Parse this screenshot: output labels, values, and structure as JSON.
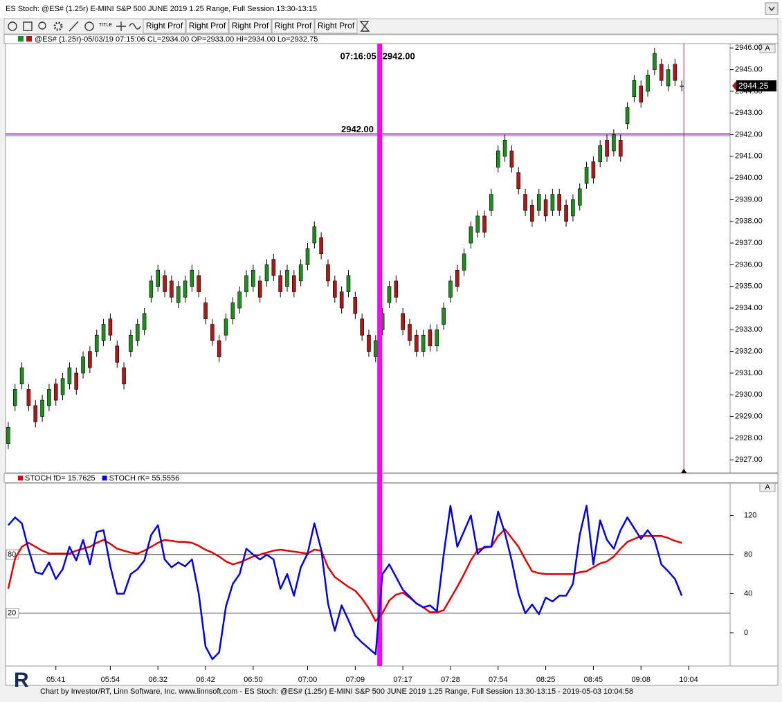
{
  "window": {
    "title": "ES Stoch: @ES# (1.25r) E-MINI S&P 500 JUNE 2019 1.25 Range, Full Session 13:30-13:15"
  },
  "toolbar": {
    "title_icon": "TITLE",
    "buttons": [
      "Right Prof",
      "Right Prof",
      "Right Prof",
      "Right Prof",
      "Right Prof"
    ]
  },
  "panel_buttons": [
    "A",
    "A"
  ],
  "footer": "Chart by Investor/RT, Linn Software, Inc. www.linnsoft.com - ES Stoch: @ES# (1.25r) E-MINI S&P 500 JUNE 2019 1.25 Range, Full Session 13:30-13:15 - 2019-05-03 10:04:58",
  "logo": "R",
  "chart_data": [
    {
      "type": "candlestick",
      "info": "@ES# (1.25r)-05/03/19 07:15:06 CL=2934.00 OP=2933.00 Hi=2934.00 Lo=2932.75",
      "up_color": "#1e8c1e",
      "down_color": "#b01818",
      "xlim": [
        -0.4,
        106.1
      ],
      "ylim": [
        2926.4,
        2946.2
      ],
      "yticks": [
        {
          "value": 2927,
          "label": "2927.00"
        },
        {
          "value": 2928,
          "label": "2928.00"
        },
        {
          "value": 2929,
          "label": "2929.00"
        },
        {
          "value": 2930,
          "label": "2930.00"
        },
        {
          "value": 2931,
          "label": "2931.00"
        },
        {
          "value": 2932,
          "label": "2932.00"
        },
        {
          "value": 2933,
          "label": "2933.00"
        },
        {
          "value": 2934,
          "label": "2934.00"
        },
        {
          "value": 2935,
          "label": "2935.00"
        },
        {
          "value": 2936,
          "label": "2936.00"
        },
        {
          "value": 2937,
          "label": "2937.00"
        },
        {
          "value": 2938,
          "label": "2938.00"
        },
        {
          "value": 2939,
          "label": "2939.00"
        },
        {
          "value": 2940,
          "label": "2940.00"
        },
        {
          "value": 2941,
          "label": "2941.00"
        },
        {
          "value": 2942,
          "label": "2942.00"
        },
        {
          "value": 2943,
          "label": "2943.00"
        },
        {
          "value": 2944,
          "label": "2944.00"
        },
        {
          "value": 2945,
          "label": "2945.00"
        },
        {
          "value": 2946,
          "label": "2946.00"
        }
      ],
      "hline": {
        "value": 2942,
        "label": "2942.00",
        "color": "#b040c0"
      },
      "cursor": {
        "x": 54.6,
        "time_label": "07:16:05",
        "price_label": "2942.00",
        "color": "#ff00ff"
      },
      "last_price": {
        "value": 2944.25,
        "label": "2944.25"
      },
      "ohlc": [
        [
          2927.75,
          2928.75,
          2927.5,
          2928.5
        ],
        [
          2929.5,
          2930.5,
          2929.25,
          2930.25
        ],
        [
          2930.5,
          2931.5,
          2930.25,
          2931.25
        ],
        [
          2930.25,
          2930.5,
          2929.25,
          2929.5
        ],
        [
          2929.5,
          2929.75,
          2928.5,
          2928.75
        ],
        [
          2929,
          2930,
          2928.75,
          2929.75
        ],
        [
          2929.5,
          2930.5,
          2929.25,
          2930.25
        ],
        [
          2930.5,
          2930.75,
          2929.5,
          2929.75
        ],
        [
          2930,
          2931,
          2929.75,
          2930.75
        ],
        [
          2930.5,
          2931.5,
          2930.25,
          2931.25
        ],
        [
          2931,
          2931.25,
          2930,
          2930.25
        ],
        [
          2931,
          2932,
          2930.75,
          2931.75
        ],
        [
          2932,
          2932.25,
          2931,
          2931.25
        ],
        [
          2932,
          2933,
          2931.75,
          2932.75
        ],
        [
          2932.5,
          2933.5,
          2932.25,
          2933.25
        ],
        [
          2933.5,
          2933.75,
          2932.5,
          2932.75
        ],
        [
          2932.25,
          2932.5,
          2931.25,
          2931.5
        ],
        [
          2931.25,
          2931.5,
          2930.25,
          2930.5
        ],
        [
          2932,
          2933,
          2931.75,
          2932.75
        ],
        [
          2932.5,
          2933.5,
          2932.25,
          2933.25
        ],
        [
          2933,
          2934,
          2932.75,
          2933.75
        ],
        [
          2934.5,
          2935.5,
          2934.25,
          2935.25
        ],
        [
          2935,
          2936,
          2934.75,
          2935.75
        ],
        [
          2935.5,
          2935.75,
          2934.5,
          2934.75
        ],
        [
          2935.25,
          2935.5,
          2934.25,
          2934.5
        ],
        [
          2934.25,
          2935.25,
          2934,
          2935
        ],
        [
          2934.5,
          2935.5,
          2934.25,
          2935.25
        ],
        [
          2935,
          2936,
          2934.75,
          2935.75
        ],
        [
          2935.5,
          2935.75,
          2934.5,
          2934.75
        ],
        [
          2934.25,
          2934.5,
          2933.25,
          2933.5
        ],
        [
          2933.25,
          2933.5,
          2932.25,
          2932.5
        ],
        [
          2932.5,
          2932.75,
          2931.5,
          2931.75
        ],
        [
          2932.75,
          2933.75,
          2932.5,
          2933.5
        ],
        [
          2933.5,
          2934.5,
          2933.25,
          2934.25
        ],
        [
          2934,
          2935,
          2933.75,
          2934.75
        ],
        [
          2934.75,
          2935.75,
          2934.5,
          2935.5
        ],
        [
          2935,
          2936,
          2934.75,
          2935.75
        ],
        [
          2935.25,
          2935.5,
          2934.25,
          2934.5
        ],
        [
          2935.25,
          2936.25,
          2935,
          2936
        ],
        [
          2936.25,
          2936.5,
          2935.25,
          2935.5
        ],
        [
          2935.5,
          2935.75,
          2934.5,
          2934.75
        ],
        [
          2935,
          2936,
          2934.75,
          2935.75
        ],
        [
          2935.5,
          2935.75,
          2934.5,
          2934.75
        ],
        [
          2935.25,
          2936.25,
          2935,
          2936
        ],
        [
          2936,
          2937,
          2935.75,
          2936.75
        ],
        [
          2937,
          2938,
          2936.75,
          2937.75
        ],
        [
          2937.25,
          2937.5,
          2936.25,
          2936.5
        ],
        [
          2936,
          2936.25,
          2935,
          2935.25
        ],
        [
          2935.25,
          2935.5,
          2934.25,
          2934.5
        ],
        [
          2934.75,
          2935,
          2933.75,
          2934
        ],
        [
          2934.75,
          2935.75,
          2934.5,
          2935.5
        ],
        [
          2934.5,
          2934.75,
          2933.5,
          2933.75
        ],
        [
          2933.5,
          2933.75,
          2932.5,
          2932.75
        ],
        [
          2932.75,
          2933,
          2931.75,
          2932
        ],
        [
          2931.75,
          2932.75,
          2931.5,
          2932.5
        ],
        [
          2933,
          2934,
          2932.75,
          2933.75
        ],
        [
          2934.25,
          2935.25,
          2934,
          2935
        ],
        [
          2935.25,
          2935.5,
          2934.25,
          2934.5
        ],
        [
          2933.75,
          2934,
          2932.75,
          2933
        ],
        [
          2933.25,
          2933.5,
          2932.25,
          2932.5
        ],
        [
          2932.75,
          2933,
          2931.75,
          2932
        ],
        [
          2932,
          2933,
          2931.75,
          2932.75
        ],
        [
          2933,
          2933.25,
          2932,
          2932.25
        ],
        [
          2932.25,
          2933.25,
          2932,
          2933
        ],
        [
          2933.25,
          2934.25,
          2933,
          2934
        ],
        [
          2934.5,
          2935.5,
          2934.25,
          2935.25
        ],
        [
          2935.75,
          2936,
          2934.75,
          2935
        ],
        [
          2935.75,
          2936.75,
          2935.5,
          2936.5
        ],
        [
          2937,
          2938,
          2936.75,
          2937.75
        ],
        [
          2937.5,
          2938.5,
          2937.25,
          2938.25
        ],
        [
          2938.25,
          2938.5,
          2937.25,
          2937.5
        ],
        [
          2938.5,
          2939.5,
          2938.25,
          2939.25
        ],
        [
          2940.5,
          2941.5,
          2940.25,
          2941.25
        ],
        [
          2941,
          2942,
          2940.75,
          2941.75
        ],
        [
          2941.25,
          2941.5,
          2940.25,
          2940.5
        ],
        [
          2940.25,
          2940.5,
          2939.25,
          2939.5
        ],
        [
          2939.25,
          2939.5,
          2938.25,
          2938.5
        ],
        [
          2938.75,
          2939,
          2937.75,
          2938
        ],
        [
          2938.5,
          2939.5,
          2938.25,
          2939.25
        ],
        [
          2939,
          2939.25,
          2938,
          2938.25
        ],
        [
          2938.5,
          2939.5,
          2938.25,
          2939.25
        ],
        [
          2939.25,
          2939.5,
          2938.25,
          2938.5
        ],
        [
          2938.75,
          2939,
          2937.75,
          2938
        ],
        [
          2938.25,
          2939.25,
          2938,
          2939
        ],
        [
          2938.75,
          2939.75,
          2938.5,
          2939.5
        ],
        [
          2939.75,
          2940.75,
          2939.5,
          2940.5
        ],
        [
          2940.75,
          2941,
          2939.75,
          2940
        ],
        [
          2940.75,
          2941.75,
          2940.5,
          2941.5
        ],
        [
          2941.75,
          2942,
          2940.75,
          2941
        ],
        [
          2941.25,
          2942.25,
          2941,
          2942
        ],
        [
          2941.75,
          2942,
          2940.75,
          2941
        ],
        [
          2942.5,
          2943.5,
          2942.25,
          2943.25
        ],
        [
          2943.75,
          2944.75,
          2943.5,
          2944.5
        ],
        [
          2944.25,
          2944.5,
          2943.25,
          2943.5
        ],
        [
          2944,
          2945,
          2943.75,
          2944.75
        ],
        [
          2945,
          2946,
          2944.75,
          2945.75
        ],
        [
          2945.25,
          2945.5,
          2944.25,
          2944.5
        ],
        [
          2944.25,
          2945.25,
          2944,
          2945
        ],
        [
          2945.25,
          2945.5,
          2944.25,
          2944.5
        ],
        [
          2944.25,
          2944.5,
          2944,
          2944.25
        ]
      ]
    },
    {
      "type": "line",
      "xlim": [
        -0.4,
        106.1
      ],
      "ylim": [
        -34,
        153
      ],
      "yticks": [
        0,
        40,
        80,
        120
      ],
      "levels": [
        80,
        20
      ],
      "xticks": [
        {
          "value": 7,
          "label": "05:41"
        },
        {
          "value": 15,
          "label": "05:54"
        },
        {
          "value": 22,
          "label": "06:32"
        },
        {
          "value": 29,
          "label": "06:42"
        },
        {
          "value": 36,
          "label": "06:50"
        },
        {
          "value": 44,
          "label": "07:00"
        },
        {
          "value": 51,
          "label": "07:09"
        },
        {
          "value": 58,
          "label": "07:17"
        },
        {
          "value": 65,
          "label": "07:28"
        },
        {
          "value": 72,
          "label": "07:54"
        },
        {
          "value": 79,
          "label": "08:25"
        },
        {
          "value": 86,
          "label": "08:45"
        },
        {
          "value": 93,
          "label": "09:08"
        },
        {
          "value": 100,
          "label": "10:04"
        }
      ],
      "series": [
        {
          "name": "STOCH fD= 15.7625",
          "color": "#e00000",
          "values": [
            45,
            76,
            88,
            92,
            88,
            84,
            81,
            81,
            81,
            81,
            84,
            86,
            88,
            92,
            95,
            91,
            86,
            84,
            82,
            81,
            84,
            88,
            92,
            95,
            94,
            93,
            93,
            92,
            89,
            85,
            82,
            78,
            73,
            70,
            72,
            75,
            78,
            80,
            82,
            84,
            85,
            84,
            83,
            82,
            81,
            85,
            84,
            67,
            57,
            52,
            47,
            43,
            35,
            25,
            12,
            20,
            33,
            39,
            41,
            36,
            30,
            26,
            21,
            21,
            23,
            35,
            47,
            60,
            74,
            85,
            87,
            88,
            99,
            106,
            97,
            88,
            75,
            63,
            61,
            60,
            60,
            60,
            60,
            60,
            62,
            63,
            67,
            71,
            73,
            78,
            86,
            93,
            96,
            99,
            99,
            99,
            99,
            97,
            94,
            92
          ]
        },
        {
          "name": "STOCH rK= 55.5556",
          "color": "#0000e0",
          "values": [
            110,
            118,
            112,
            85,
            62,
            60,
            72,
            55,
            65,
            88,
            74,
            95,
            70,
            103,
            105,
            68,
            40,
            40,
            60,
            65,
            74,
            100,
            110,
            75,
            67,
            72,
            68,
            75,
            40,
            -14,
            -27,
            -20,
            27,
            50,
            60,
            86,
            80,
            75,
            80,
            75,
            45,
            60,
            38,
            67,
            81,
            112,
            85,
            30,
            2,
            28,
            13,
            -3,
            -10,
            -16,
            -22,
            60,
            70,
            57,
            44,
            37,
            30,
            26,
            28,
            22,
            80,
            130,
            88,
            104,
            120,
            81,
            88,
            88,
            124,
            102,
            74,
            40,
            20,
            29,
            19,
            36,
            32,
            38,
            38,
            50,
            100,
            130,
            70,
            115,
            95,
            86,
            105,
            118,
            107,
            96,
            105,
            95,
            70,
            63,
            55,
            38
          ]
        }
      ]
    }
  ]
}
